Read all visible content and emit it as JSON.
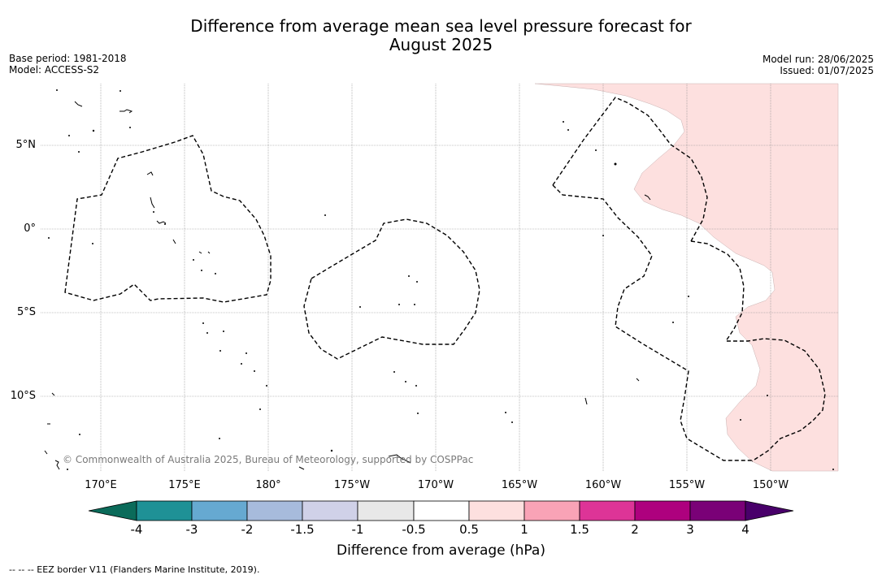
{
  "title_line1": "Difference from average mean sea level pressure forecast for",
  "title_line2": "August 2025",
  "meta_left": {
    "base_period": "Base period: 1981-2018",
    "model": "Model: ACCESS-S2"
  },
  "meta_right": {
    "model_run": "Model run: 28/06/2025",
    "issued": "Issued: 01/07/2025"
  },
  "map": {
    "lon_labels": [
      "170°E",
      "175°E",
      "180°",
      "175°W",
      "170°W",
      "165°W",
      "160°W",
      "155°W",
      "150°W"
    ],
    "lat_labels": [
      "5°N",
      "0°",
      "5°S",
      "10°S"
    ],
    "credit": "© Commonwealth of Australia 2025, Bureau of Meteorology, supported by COSPPac",
    "shading_color": "#fde0df",
    "shading_category": "0.5 to 1"
  },
  "colorbar": {
    "label": "Difference from average (hPa)",
    "ticks": [
      "-4",
      "-3",
      "-2",
      "-1.5",
      "-1",
      "-0.5",
      "0.5",
      "1",
      "1.5",
      "2",
      "3",
      "4"
    ],
    "colors": {
      "below_min": "#0b6b5a",
      "bins": [
        "#1f9196",
        "#66a9d1",
        "#a7bbdc",
        "#d0d1e8",
        "#e8e8e8",
        "#ffffff",
        "#fde0df",
        "#f9a3b6",
        "#dd3497",
        "#ae017e",
        "#7a0177"
      ],
      "above_max": "#49006a"
    }
  },
  "footnote": "--  --  -- EEZ border V11 (Flanders Marine Institute, 2019)."
}
